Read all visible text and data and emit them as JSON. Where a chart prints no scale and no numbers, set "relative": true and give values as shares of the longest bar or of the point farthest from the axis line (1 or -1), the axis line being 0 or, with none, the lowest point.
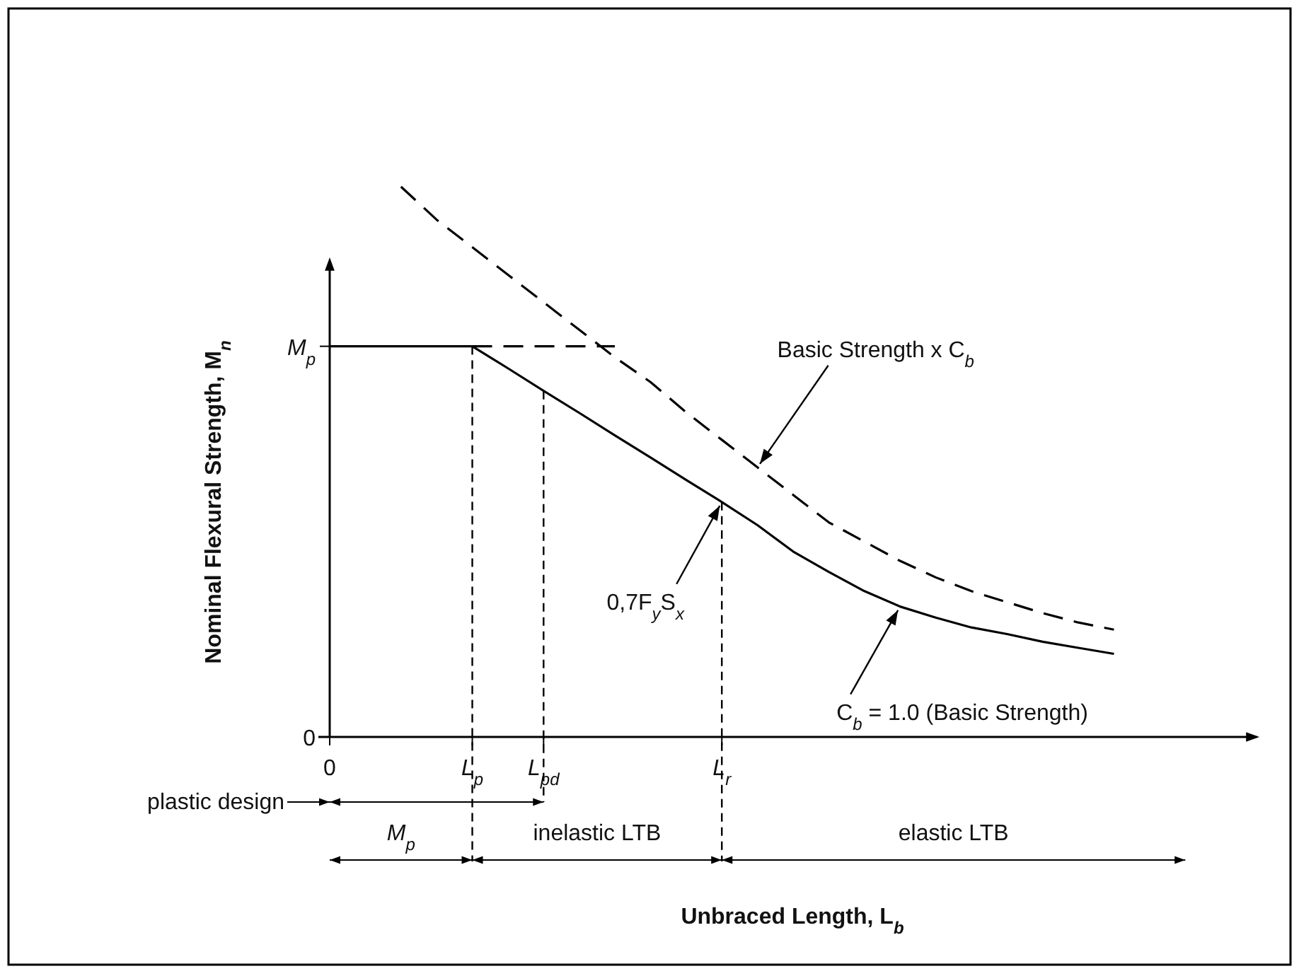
{
  "chart_data": {
    "type": "line",
    "relative": true,
    "ylabel": "Nominal Flexural Strength, M$_{n}$",
    "categories": [
      "0",
      null,
      null,
      null,
      "L$_{p}$",
      null,
      "L$_{pd}$",
      null,
      null,
      null,
      null,
      "L$_{r}$",
      null,
      null,
      null,
      null,
      null,
      null,
      null,
      null,
      null,
      null,
      null,
      null,
      null,
      null,
      null
    ],
    "series": [
      {
        "color": "#000000",
        "line_style": "solid",
        "values": [
          0.71,
          0.71,
          0.71,
          0.71,
          0.71,
          0.67,
          0.629,
          0.589,
          0.548,
          0.508,
          0.467,
          0.427,
          0.385,
          0.337,
          0.3,
          0.265,
          0.237,
          0.217,
          0.199,
          0.187,
          0.173,
          0.162,
          0.151,
          null,
          null,
          null,
          null
        ]
      },
      {
        "color": "#000000",
        "line_style": "dashed",
        "values": [
          null,
          null,
          1,
          0.94,
          0.89,
          0.84,
          0.79,
          0.74,
          0.69,
          0.645,
          0.59,
          0.54,
          0.49,
          0.44,
          0.39,
          0.355,
          0.32,
          0.29,
          0.265,
          0.245,
          0.225,
          0.208,
          0.195,
          null,
          null,
          null,
          null
        ]
      },
      {
        "color": "#000000",
        "line_style": "dashed",
        "values": [
          null,
          null,
          null,
          null,
          0.71,
          0.71,
          0.71,
          0.71,
          0.71,
          null,
          null,
          null,
          null,
          null,
          null,
          null,
          null,
          null,
          null,
          null,
          null,
          null,
          null,
          null,
          null,
          null,
          null
        ]
      }
    ],
    "ref_lines": [
      {
        "axis": "x",
        "value": "L$_{p}$",
        "line_style": "dashed"
      },
      {
        "axis": "x",
        "value": "L$_{pd}$",
        "line_style": "dashed"
      },
      {
        "axis": "x",
        "value": "L$_{r}$",
        "line_style": "dashed"
      }
    ],
    "annotations": [
      "0",
      "M$_{p}$",
      "Basic Strength x C$_{b}$",
      "0,7F$_{y}$S$_{x}$",
      "C$_{b}$ = 1.0 (Basic Strength)",
      "plastic design",
      "M$_{p}$",
      "inelastic LTB",
      "elastic  LTB",
      "Unbraced Length, L$_{b}$"
    ]
  }
}
